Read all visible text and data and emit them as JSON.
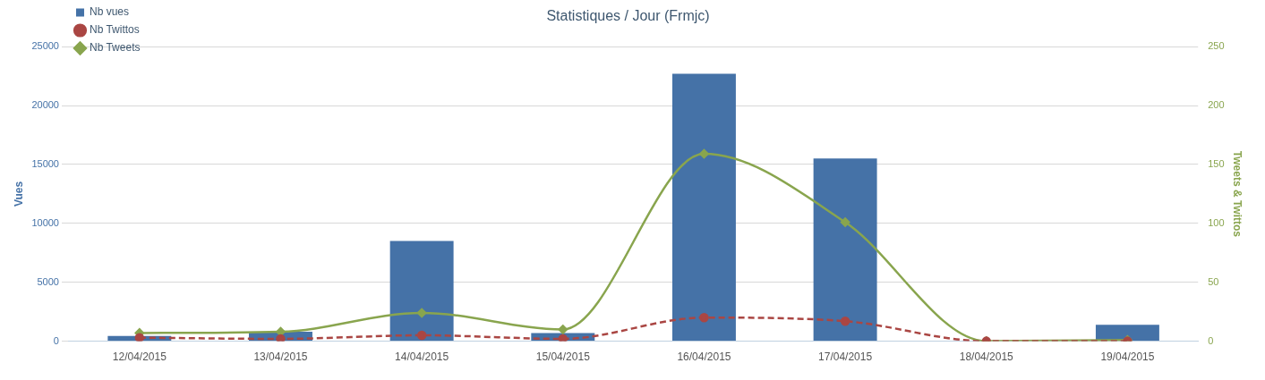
{
  "chart_data": {
    "type": "bar",
    "title": "Statistiques / Jour (Frmjc)",
    "ylabel": "Vues",
    "y2label": "Tweets & Twittos",
    "categories": [
      "12/04/2015",
      "13/04/2015",
      "14/04/2015",
      "15/04/2015",
      "16/04/2015",
      "17/04/2015",
      "18/04/2015",
      "19/04/2015"
    ],
    "series": [
      {
        "name": "Nb vues",
        "color": "#4572a7",
        "values": [
          450,
          800,
          8500,
          700,
          22700,
          15500,
          0,
          1400
        ]
      },
      {
        "name": "Nb Twittos",
        "type": "line",
        "axis": "y2",
        "color": "#aa4643",
        "marker": "circle",
        "line_style": "dashed",
        "values": [
          3,
          2,
          5,
          2,
          20,
          17,
          0,
          0
        ]
      },
      {
        "name": "Nb Tweets",
        "type": "line",
        "axis": "y2",
        "color": "#89a54e",
        "marker": "diamond",
        "line_style": "solid",
        "values": [
          7,
          8,
          24,
          10,
          159,
          101,
          0,
          1
        ]
      }
    ],
    "ylim": [
      0,
      25000
    ],
    "yticks": [
      0,
      5000,
      10000,
      15000,
      20000,
      25000
    ],
    "y2lim": [
      0,
      250
    ],
    "y2ticks": [
      0,
      50,
      100,
      150,
      200,
      250
    ],
    "grid": "y",
    "legend": "top left"
  }
}
